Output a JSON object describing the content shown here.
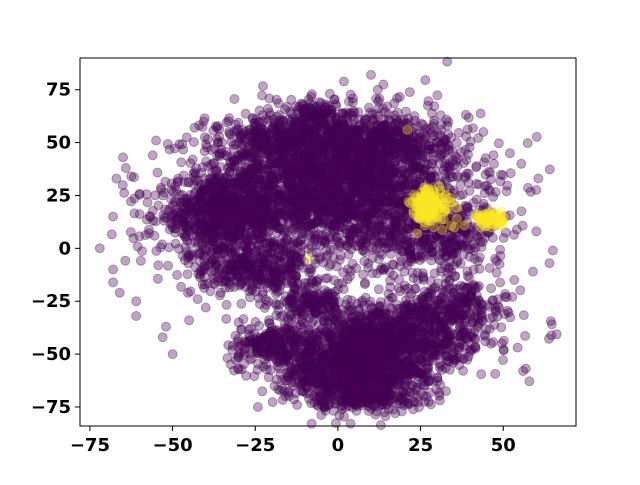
{
  "chart_data": {
    "type": "scatter",
    "title": "",
    "xlabel": "",
    "ylabel": "",
    "xlim": [
      -78,
      72
    ],
    "ylim": [
      -84,
      90
    ],
    "x_ticks": [
      -75,
      -50,
      -25,
      0,
      25,
      50
    ],
    "y_ticks": [
      75,
      50,
      25,
      0,
      -25,
      -50,
      -75
    ],
    "x_tick_labels": [
      "−75",
      "−50",
      "−25",
      "0",
      "25",
      "50"
    ],
    "y_tick_labels": [
      "75",
      "50",
      "25",
      "0",
      "−25",
      "−50",
      "−75"
    ],
    "grid": false,
    "legend": "none",
    "marker_alpha": 0.35,
    "series": [
      {
        "color": "#440154",
        "clusters": [
          {
            "cx": 0,
            "cy": 30,
            "sx": 20,
            "sy": 17,
            "n": 2600
          },
          {
            "cx": -35,
            "cy": 15,
            "sx": 10,
            "sy": 9,
            "n": 700
          },
          {
            "cx": -15,
            "cy": 50,
            "sx": 10,
            "sy": 7,
            "n": 350
          },
          {
            "cx": 15,
            "cy": 50,
            "sx": 9,
            "sy": 6,
            "n": 250
          },
          {
            "cx": -5,
            "cy": 62,
            "sx": 5,
            "sy": 4,
            "n": 120
          },
          {
            "cx": 30,
            "cy": 5,
            "sx": 10,
            "sy": 8,
            "n": 300
          },
          {
            "cx": -25,
            "cy": -10,
            "sx": 10,
            "sy": 6,
            "n": 350
          },
          {
            "cx": 5,
            "cy": -55,
            "sx": 12,
            "sy": 10,
            "n": 1300
          },
          {
            "cx": 20,
            "cy": -40,
            "sx": 14,
            "sy": 8,
            "n": 700
          },
          {
            "cx": -20,
            "cy": -45,
            "sx": 6,
            "sy": 5,
            "n": 180
          },
          {
            "cx": 8,
            "cy": -70,
            "sx": 7,
            "sy": 3,
            "n": 150
          },
          {
            "cx": 35,
            "cy": -25,
            "sx": 8,
            "sy": 6,
            "n": 200
          },
          {
            "cx": -8,
            "cy": -25,
            "sx": 6,
            "sy": 4,
            "n": 150
          }
        ],
        "outliers": [
          [
            -72,
            0
          ],
          [
            -67,
            33
          ],
          [
            -68,
            15
          ],
          [
            -65,
            43
          ],
          [
            -55,
            51
          ],
          [
            -56,
            44
          ],
          [
            -68,
            -10
          ],
          [
            -68,
            -16
          ],
          [
            -66,
            -21
          ],
          [
            -61,
            -25
          ],
          [
            -61,
            -32
          ],
          [
            -52,
            -37
          ],
          [
            -53,
            -42
          ],
          [
            -50,
            -50
          ],
          [
            -45,
            -34
          ],
          [
            10,
            82
          ],
          [
            44,
            55
          ],
          [
            52,
            45
          ],
          [
            60,
            8
          ],
          [
            59,
            -11
          ],
          [
            65,
            -1
          ],
          [
            64,
            -7
          ],
          [
            56,
            -58
          ],
          [
            48,
            -6
          ],
          [
            51,
            27
          ],
          [
            -30,
            -35
          ],
          [
            -40,
            -28
          ]
        ]
      },
      {
        "color": "#fde725",
        "clusters": [
          {
            "cx": 28,
            "cy": 20,
            "sx": 3,
            "sy": 4,
            "n": 160
          },
          {
            "cx": 46,
            "cy": 14,
            "sx": 2.5,
            "sy": 2,
            "n": 60
          }
        ],
        "outliers": [
          [
            21,
            56
          ],
          [
            29,
            10
          ],
          [
            24,
            7
          ],
          [
            -9,
            -5
          ],
          [
            36,
            14
          ]
        ]
      }
    ]
  }
}
